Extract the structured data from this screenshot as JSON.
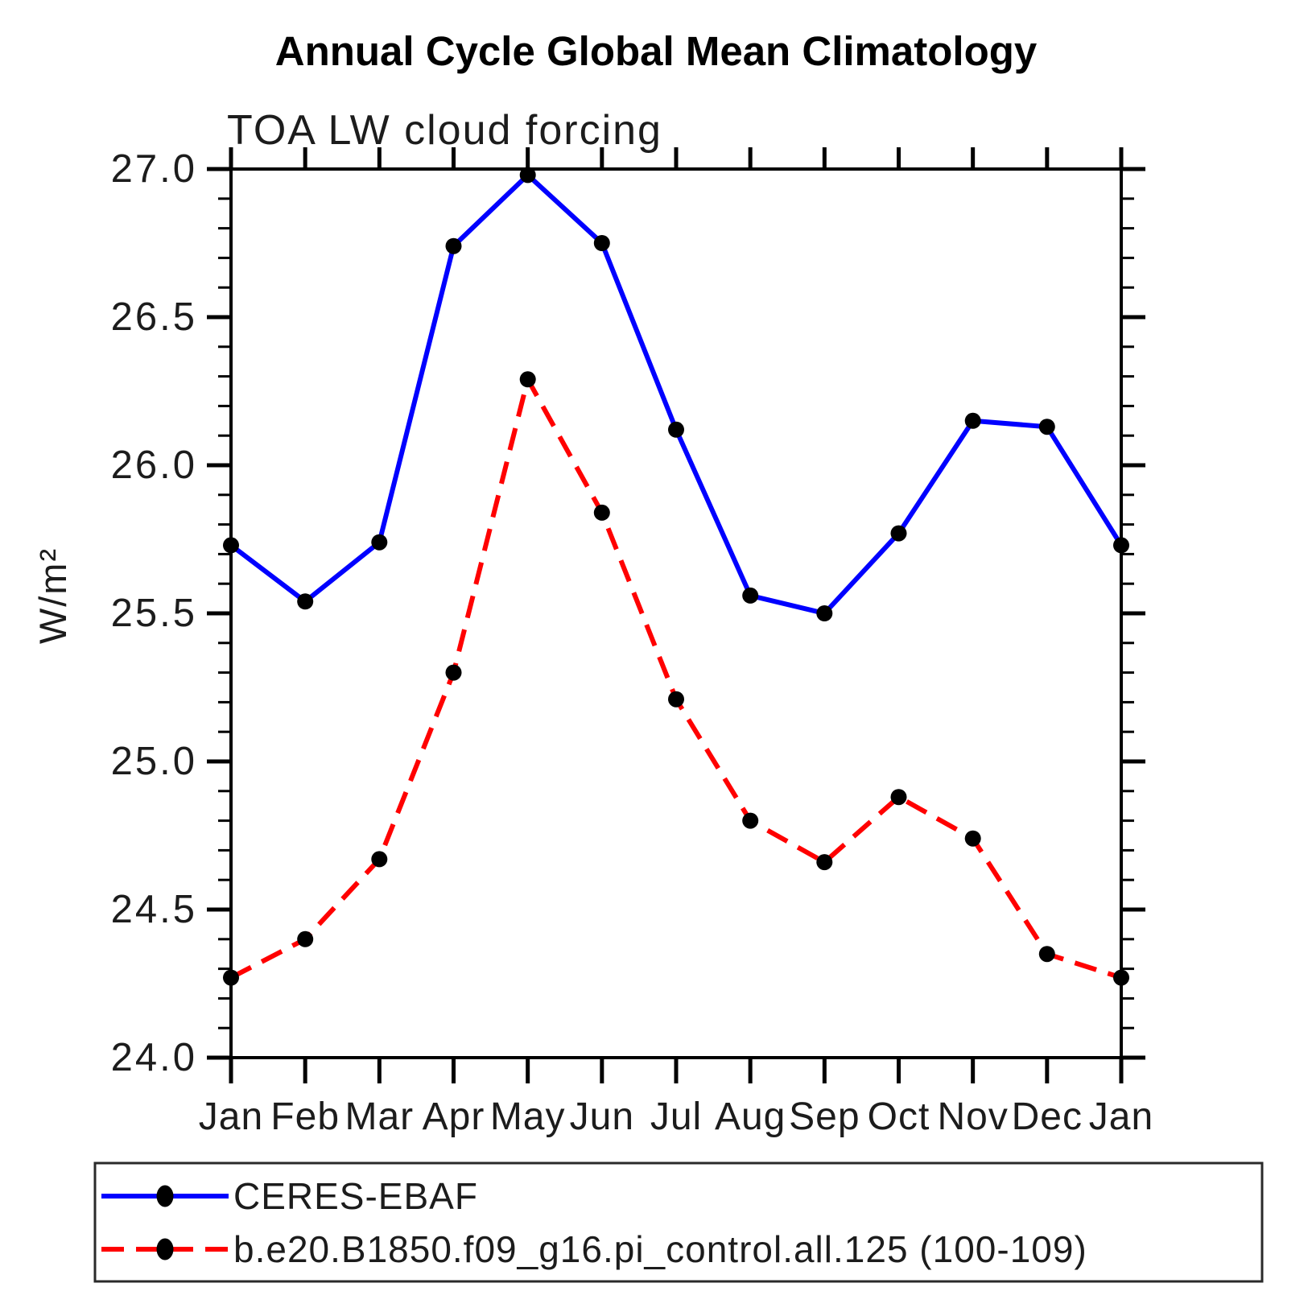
{
  "chart_data": {
    "type": "line",
    "title": "Annual Cycle Global Mean Climatology",
    "subtitle": "TOA LW cloud forcing",
    "ylabel": "W/m²",
    "xlabel": "",
    "categories": [
      "Jan",
      "Feb",
      "Mar",
      "Apr",
      "May",
      "Jun",
      "Jul",
      "Aug",
      "Sep",
      "Oct",
      "Nov",
      "Dec",
      "Jan"
    ],
    "series": [
      {
        "name": "CERES-EBAF",
        "color": "#0000ff",
        "line_style": "solid",
        "marker": "filled-circle",
        "marker_color": "#000000",
        "values": [
          25.73,
          25.54,
          25.74,
          26.74,
          26.98,
          26.75,
          26.12,
          25.56,
          25.5,
          25.77,
          26.15,
          26.13,
          25.73
        ]
      },
      {
        "name": "b.e20.B1850.f09_g16.pi_control.all.125 (100-109)",
        "color": "#ff0000",
        "line_style": "dashed",
        "marker": "filled-circle",
        "marker_color": "#000000",
        "values": [
          24.27,
          24.4,
          24.67,
          25.3,
          26.29,
          25.84,
          25.21,
          24.8,
          24.66,
          24.88,
          24.74,
          24.35,
          24.27
        ]
      }
    ],
    "ylim": [
      24.0,
      27.0
    ],
    "ytick_labels": [
      "27.0",
      "26.5",
      "26.0",
      "25.5",
      "25.0",
      "24.5",
      "24.0"
    ],
    "yminor_step": 0.1,
    "grid": false,
    "legend_position": "bottom",
    "axis_color": "#000000",
    "background_color": "#ffffff"
  }
}
